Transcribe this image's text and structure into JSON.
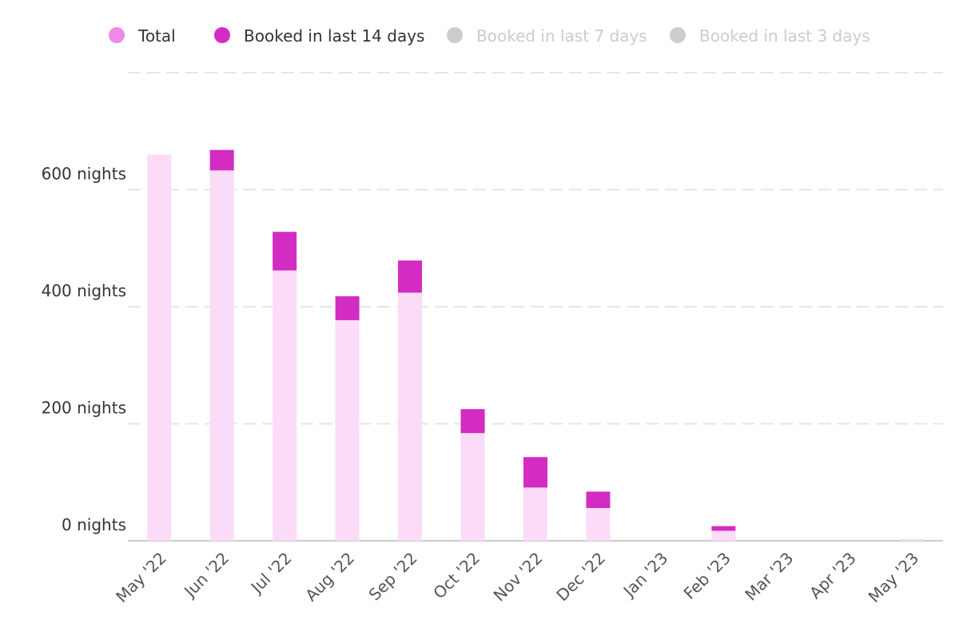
{
  "chart_data": {
    "type": "bar",
    "stacked": true,
    "categories": [
      "May '22",
      "Jun '22",
      "Jul '22",
      "Aug '22",
      "Sep '22",
      "Oct '22",
      "Nov '22",
      "Dec '22",
      "Jan '23",
      "Feb '23",
      "Mar '23",
      "Apr '23",
      "May '23"
    ],
    "series": [
      {
        "name": "Total",
        "color": "#fadcf8",
        "legend_color": "#f088ea",
        "visible": true,
        "values": [
          660,
          633,
          462,
          377,
          424,
          184,
          91,
          56,
          0,
          17,
          0,
          0,
          3
        ]
      },
      {
        "name": "Booked in last 14 days",
        "color": "#d22cc2",
        "legend_color": "#d22cc2",
        "visible": true,
        "values": [
          0,
          35,
          66,
          41,
          55,
          41,
          52,
          28,
          0,
          8,
          0,
          0,
          0
        ]
      },
      {
        "name": "Booked in last 7 days",
        "color": "#cccccc",
        "legend_color": "#cccccc",
        "visible": false
      },
      {
        "name": "Booked in last 3 days",
        "color": "#cccccc",
        "legend_color": "#cccccc",
        "visible": false
      }
    ],
    "y_ticks": [
      {
        "value": 0,
        "label": "0 nights"
      },
      {
        "value": 200,
        "label": "200 nights"
      },
      {
        "value": 400,
        "label": "400 nights"
      },
      {
        "value": 600,
        "label": "600 nights"
      }
    ],
    "ylim": [
      0,
      800
    ],
    "grid": true,
    "legend_position": "top"
  }
}
